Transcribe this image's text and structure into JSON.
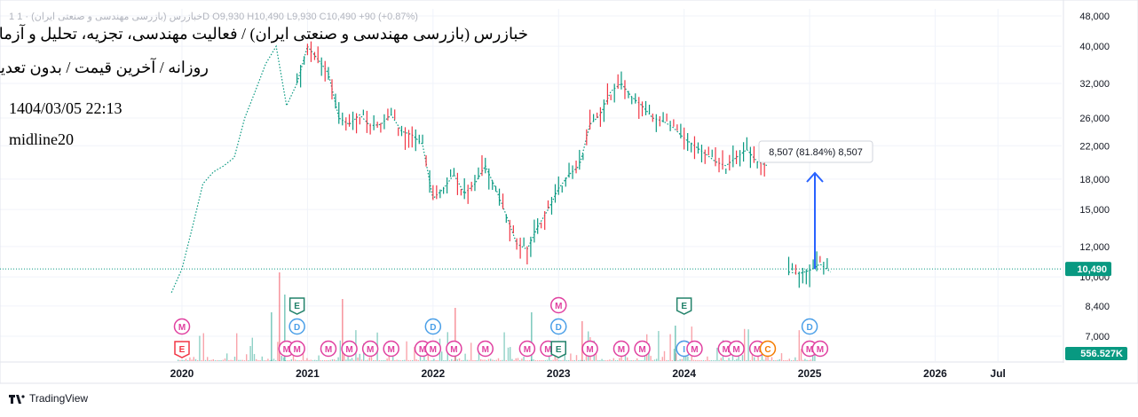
{
  "header": {
    "ohlc_line": "1 خبازرس (بازرسی مهندسی و صنعتی ایران) · 1D  O9,930  H10,490  L9,930  C10,490  +90 (+0.87%)",
    "title": "خبازرس (بازرسی مهندسی و صنعتی ایران) / فعالیت مهندسی، تجزیه، تحلیل و آزمایش فنی",
    "subtitle": "روزانه / آخرین قیمت / بدون تعدیل",
    "datetime": "1404/03/05 22:13",
    "indicator": "midline20"
  },
  "measure": {
    "label": "8,507 (81.84%) 8,507",
    "color": "#2962ff"
  },
  "price_badge": {
    "value": "10,490",
    "color": "#089981"
  },
  "volume_badge": {
    "value": "556.527K",
    "color": "#089981"
  },
  "brand": {
    "name": "TradingView"
  },
  "colors": {
    "up": "#089981",
    "down": "#f23645",
    "midline": "#089981",
    "grid": "#f0f3fa"
  },
  "chart_data": {
    "type": "line",
    "scale": "log",
    "x_ticks": [
      "2020",
      "2021",
      "2022",
      "2023",
      "2024",
      "2025",
      "2026",
      "Jul"
    ],
    "y_ticks": [
      "48,000",
      "40,000",
      "32,000",
      "26,000",
      "22,000",
      "18,000",
      "15,000",
      "12,000",
      "10,000",
      "8,400",
      "7,000"
    ],
    "ylim": [
      6700,
      50000
    ],
    "last_price": 10490,
    "series": [
      {
        "name": "midline20",
        "x": [
          "2019-12",
          "2020-01",
          "2020-02",
          "2020-03",
          "2020-04",
          "2020-05",
          "2020-06",
          "2020-07",
          "2020-08",
          "2020-09",
          "2020-10",
          "2020-11",
          "2020-12",
          "2021-01",
          "2021-02",
          "2021-03",
          "2021-04",
          "2021-05",
          "2021-06",
          "2021-07",
          "2021-08",
          "2021-09",
          "2021-10",
          "2021-11",
          "2021-12",
          "2022-01",
          "2022-02",
          "2022-03",
          "2022-04",
          "2022-05",
          "2022-06",
          "2022-07",
          "2022-08",
          "2022-09",
          "2022-10",
          "2022-11",
          "2022-12",
          "2023-01",
          "2023-02",
          "2023-03",
          "2023-04",
          "2023-05",
          "2023-06",
          "2023-07",
          "2023-08",
          "2023-09",
          "2023-10",
          "2023-11",
          "2023-12",
          "2024-01",
          "2024-02",
          "2024-03",
          "2024-04",
          "2024-05",
          "2024-06",
          "2024-07",
          "2024-08",
          "2024-09",
          "2024-10",
          "2024-11",
          "2024-12",
          "2025-01",
          "2025-02",
          "2025-03"
        ],
        "y": [
          9100,
          10500,
          13500,
          17500,
          18800,
          19500,
          20500,
          26000,
          30500,
          36000,
          40000,
          28000,
          32000,
          40000,
          37000,
          34000,
          26000,
          25000,
          26500,
          24800,
          25000,
          26500,
          24000,
          23500,
          22200,
          16000,
          17000,
          18500,
          16500,
          17500,
          19500,
          17000,
          14500,
          12200,
          11800,
          13500,
          15000,
          17000,
          18500,
          19500,
          25000,
          26500,
          30500,
          32000,
          29500,
          28000,
          26000,
          25500,
          24500,
          23000,
          22000,
          21000,
          20000,
          19500,
          20500,
          21500,
          20000,
          19500,
          null,
          10300,
          10200,
          10400,
          10800,
          10300
        ]
      }
    ],
    "markers": [
      {
        "x": "2020-01",
        "kind": "M"
      },
      {
        "x": "2020-01",
        "kind": "E"
      },
      {
        "x": "2020-12",
        "kind": "E"
      },
      {
        "x": "2020-12",
        "kind": "D"
      },
      {
        "x": "2020-11",
        "kind": "M"
      },
      {
        "x": "2020-12",
        "kind": "M"
      },
      {
        "x": "2021-03",
        "kind": "M"
      },
      {
        "x": "2021-05",
        "kind": "M"
      },
      {
        "x": "2021-07",
        "kind": "M"
      },
      {
        "x": "2021-09",
        "kind": "M"
      },
      {
        "x": "2022-01",
        "kind": "D"
      },
      {
        "x": "2021-12",
        "kind": "M"
      },
      {
        "x": "2022-01",
        "kind": "M"
      },
      {
        "x": "2022-03",
        "kind": "M"
      },
      {
        "x": "2022-06",
        "kind": "M"
      },
      {
        "x": "2022-10",
        "kind": "M"
      },
      {
        "x": "2022-12",
        "kind": "M"
      },
      {
        "x": "2023-01",
        "kind": "M"
      },
      {
        "x": "2023-01",
        "kind": "D"
      },
      {
        "x": "2023-01",
        "kind": "E"
      },
      {
        "x": "2023-04",
        "kind": "M"
      },
      {
        "x": "2023-07",
        "kind": "M"
      },
      {
        "x": "2023-09",
        "kind": "M"
      },
      {
        "x": "2024-01",
        "kind": "E"
      },
      {
        "x": "2024-01",
        "kind": "M"
      },
      {
        "x": "2024-01",
        "kind": "I"
      },
      {
        "x": "2024-02",
        "kind": "M"
      },
      {
        "x": "2024-05",
        "kind": "M"
      },
      {
        "x": "2024-06",
        "kind": "M"
      },
      {
        "x": "2024-08",
        "kind": "M"
      },
      {
        "x": "2024-09",
        "kind": "C"
      },
      {
        "x": "2025-01",
        "kind": "M"
      },
      {
        "x": "2025-01",
        "kind": "D"
      },
      {
        "x": "2025-02",
        "kind": "M"
      }
    ]
  }
}
